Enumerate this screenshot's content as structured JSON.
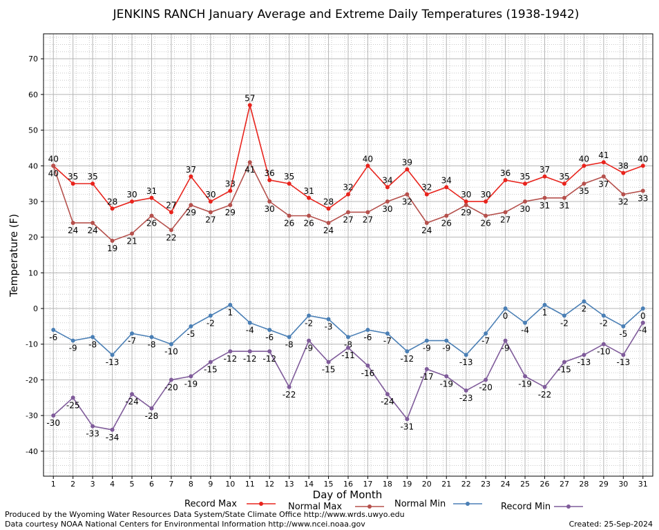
{
  "chart_data": {
    "type": "line",
    "title": "JENKINS RANCH January Average and Extreme Daily Temperatures (1938-1942)",
    "xlabel": "Day of Month",
    "ylabel": "Temperature (F)",
    "ylim": [
      -47,
      77
    ],
    "yticks": [
      -40,
      -30,
      -20,
      -10,
      0,
      10,
      20,
      30,
      40,
      50,
      60,
      70
    ],
    "x": [
      1,
      2,
      3,
      4,
      5,
      6,
      7,
      8,
      9,
      10,
      11,
      12,
      13,
      14,
      15,
      16,
      17,
      18,
      19,
      20,
      21,
      22,
      23,
      24,
      25,
      26,
      27,
      28,
      29,
      30,
      31
    ],
    "grid": true,
    "legend_position": "bottom",
    "series": [
      {
        "name": "Record Max",
        "color": "#e8231c",
        "values": [
          40,
          35,
          35,
          28,
          30,
          31,
          27,
          37,
          30,
          33,
          57,
          36,
          35,
          31,
          28,
          32,
          40,
          34,
          39,
          32,
          34,
          30,
          30,
          36,
          35,
          37,
          35,
          40,
          41,
          38,
          40
        ]
      },
      {
        "name": "Normal Max",
        "color": "#b5504c",
        "values": [
          40,
          24,
          24,
          19,
          21,
          26,
          22,
          29,
          27,
          29,
          41,
          30,
          26,
          26,
          24,
          27,
          27,
          30,
          32,
          24,
          26,
          29,
          26,
          27,
          30,
          31,
          31,
          35,
          37,
          32,
          33
        ]
      },
      {
        "name": "Normal Min",
        "color": "#4a7fb5",
        "values": [
          -6,
          -9,
          -8,
          -13,
          -7,
          -8,
          -10,
          -5,
          -2,
          1,
          -4,
          -6,
          -8,
          -2,
          -3,
          -8,
          -6,
          -7,
          -12,
          -9,
          -9,
          -13,
          -7,
          0,
          -4,
          1,
          -2,
          2,
          -2,
          -5,
          0
        ]
      },
      {
        "name": "Record Min",
        "color": "#7f5b9a",
        "values": [
          -30,
          -25,
          -33,
          -34,
          -24,
          -28,
          -20,
          -19,
          -15,
          -12,
          -12,
          -12,
          -22,
          -9,
          -15,
          -11,
          -16,
          -24,
          -31,
          -17,
          -19,
          -23,
          -20,
          -9,
          -19,
          -22,
          -15,
          -13,
          -10,
          -13,
          -4
        ]
      }
    ]
  },
  "footer": {
    "line1": "Produced by the Wyoming Water Resources Data System/State Climate Office http://www.wrds.uwyo.edu",
    "line2": "Data courtesy NOAA National Centers for Environmental Information http://www.ncei.noaa.gov",
    "created": "Created:  25-Sep-2024"
  }
}
